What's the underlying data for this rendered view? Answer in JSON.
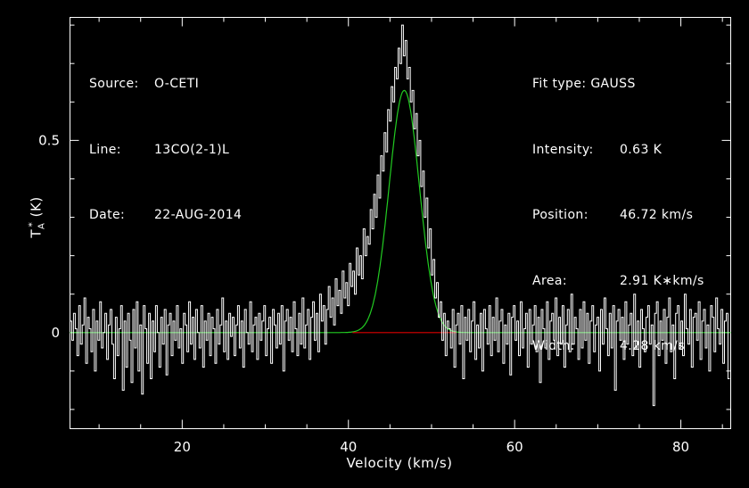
{
  "info_left": [
    {
      "key": "Source:",
      "value": "O-CETI"
    },
    {
      "key": "Line:",
      "value": "13CO(2-1)L"
    },
    {
      "key": "Date:",
      "value": "22-AUG-2014"
    }
  ],
  "info_right": [
    {
      "key": "Fit type: ",
      "value": "GAUSS"
    },
    {
      "key": "Intensity:",
      "value": "0.63 K"
    },
    {
      "key": "Position:",
      "value": "46.72 km/s"
    },
    {
      "key": "Area:",
      "value": "2.91 K∗km/s"
    },
    {
      "key": "Width:",
      "value": "4.28 km/s"
    }
  ],
  "colors": {
    "background": "#000000",
    "axes": "#ffffff",
    "spectrum": "#ffffff",
    "fit": "#22cc22",
    "baseline": "#dd0000"
  },
  "chart_data": {
    "type": "line",
    "xlabel": "Velocity (km/s)",
    "ylabel_main": "T",
    "ylabel_sub": "A",
    "ylabel_sup": "*",
    "ylabel_unit": "(K)",
    "xlim": [
      6.5,
      86
    ],
    "ylim": [
      -0.25,
      0.82
    ],
    "xticks": [
      20,
      40,
      60,
      80
    ],
    "yticks": [
      0,
      0.5
    ],
    "xtick_labels": [
      "20",
      "40",
      "60",
      "80"
    ],
    "ytick_labels": [
      "0",
      "0.5"
    ],
    "series": [
      {
        "kind": "histogram",
        "x_start": 6.5,
        "x_step": 0.21,
        "values": [
          0.03,
          -0.02,
          0.05,
          0.01,
          -0.06,
          0.07,
          -0.03,
          0.02,
          0.09,
          -0.08,
          0.04,
          0.01,
          -0.05,
          0.06,
          -0.1,
          0.03,
          -0.02,
          0.08,
          -0.04,
          0.0,
          0.05,
          -0.07,
          0.02,
          0.06,
          -0.03,
          -0.12,
          0.04,
          -0.06,
          0.01,
          0.07,
          -0.15,
          0.03,
          -0.09,
          0.05,
          -0.02,
          -0.13,
          0.06,
          -0.04,
          0.08,
          -0.1,
          0.02,
          -0.16,
          0.07,
          0.01,
          -0.08,
          0.05,
          -0.12,
          0.03,
          -0.05,
          0.07,
          0.0,
          -0.09,
          0.04,
          -0.03,
          0.06,
          -0.11,
          0.02,
          0.05,
          -0.06,
          0.03,
          -0.02,
          0.07,
          -0.04,
          0.01,
          -0.08,
          0.05,
          0.02,
          -0.05,
          0.08,
          -0.03,
          0.04,
          -0.07,
          0.06,
          0.0,
          -0.04,
          0.07,
          -0.09,
          0.03,
          -0.02,
          0.05,
          -0.06,
          0.04,
          0.01,
          -0.08,
          0.06,
          -0.03,
          0.02,
          0.09,
          -0.05,
          0.03,
          -0.07,
          0.05,
          -0.01,
          0.04,
          -0.06,
          0.02,
          0.07,
          -0.04,
          0.03,
          -0.09,
          0.06,
          0.0,
          -0.03,
          0.08,
          -0.05,
          0.02,
          0.04,
          -0.07,
          0.05,
          -0.02,
          0.03,
          0.07,
          -0.06,
          0.01,
          0.04,
          -0.08,
          0.06,
          0.02,
          -0.04,
          0.05,
          -0.03,
          0.07,
          -0.1,
          0.03,
          0.06,
          -0.02,
          0.04,
          -0.05,
          0.08,
          0.01,
          -0.06,
          0.05,
          -0.03,
          0.09,
          -0.04,
          0.02,
          0.06,
          -0.07,
          0.04,
          0.08,
          -0.02,
          0.05,
          -0.05,
          0.1,
          0.03,
          0.07,
          -0.03,
          0.06,
          0.12,
          0.04,
          0.09,
          0.02,
          0.14,
          0.07,
          0.11,
          0.05,
          0.16,
          0.09,
          0.13,
          0.07,
          0.18,
          0.12,
          0.16,
          0.1,
          0.22,
          0.15,
          0.2,
          0.14,
          0.27,
          0.2,
          0.25,
          0.23,
          0.32,
          0.27,
          0.36,
          0.3,
          0.41,
          0.35,
          0.46,
          0.42,
          0.52,
          0.47,
          0.58,
          0.55,
          0.64,
          0.6,
          0.69,
          0.66,
          0.74,
          0.7,
          0.8,
          0.72,
          0.76,
          0.66,
          0.69,
          0.6,
          0.63,
          0.53,
          0.57,
          0.46,
          0.5,
          0.38,
          0.42,
          0.3,
          0.35,
          0.22,
          0.27,
          0.15,
          0.19,
          0.09,
          0.13,
          0.04,
          0.08,
          -0.02,
          0.05,
          -0.06,
          0.03,
          0.01,
          -0.04,
          0.06,
          -0.09,
          0.02,
          0.05,
          -0.03,
          0.07,
          -0.12,
          0.04,
          -0.02,
          0.06,
          -0.05,
          0.03,
          0.08,
          -0.07,
          0.02,
          -0.04,
          0.05,
          -0.1,
          0.06,
          0.01,
          -0.03,
          0.07,
          -0.06,
          0.04,
          -0.02,
          0.09,
          -0.05,
          0.03,
          0.06,
          -0.08,
          0.02,
          -0.03,
          0.05,
          -0.11,
          0.04,
          0.07,
          -0.02,
          0.03,
          -0.06,
          0.08,
          -0.04,
          0.01,
          0.05,
          -0.09,
          0.06,
          -0.03,
          0.02,
          0.07,
          -0.05,
          0.04,
          -0.13,
          0.06,
          0.01,
          -0.04,
          0.08,
          -0.07,
          0.03,
          0.05,
          -0.02,
          0.09,
          -0.06,
          0.04,
          -0.03,
          0.07,
          -0.09,
          0.02,
          0.06,
          -0.05,
          0.1,
          -0.03,
          0.04,
          0.01,
          -0.07,
          0.06,
          -0.04,
          0.08,
          -0.02,
          0.05,
          -0.08,
          0.03,
          0.07,
          -0.05,
          0.02,
          0.04,
          -0.1,
          0.06,
          -0.03,
          0.09,
          0.01,
          -0.06,
          0.05,
          -0.04,
          0.07,
          -0.15,
          0.03,
          0.06,
          -0.02,
          0.04,
          -0.07,
          0.08,
          -0.03,
          0.02,
          0.05,
          -0.06,
          0.1,
          -0.04,
          0.03,
          -0.09,
          0.06,
          0.01,
          -0.05,
          0.04,
          0.07,
          -0.03,
          0.02,
          -0.19,
          0.05,
          0.08,
          -0.06,
          0.03,
          -0.02,
          0.06,
          -0.08,
          0.04,
          0.09,
          -0.05,
          0.02,
          -0.12,
          0.05,
          0.07,
          -0.04,
          0.03,
          -0.06,
          0.1,
          0.01,
          -0.03,
          0.06,
          -0.09,
          0.04,
          0.05,
          -0.02,
          0.08,
          -0.07,
          0.03,
          0.06,
          -0.04,
          0.02,
          -0.1,
          0.07,
          0.04,
          -0.05,
          0.09,
          0.01,
          -0.03,
          0.06,
          -0.08,
          0.03,
          0.05,
          -0.12
        ]
      },
      {
        "kind": "gaussian-fit",
        "amplitude": 0.63,
        "center": 46.72,
        "fwhm": 4.28,
        "x_min": 6.5,
        "x_max": 86,
        "fit_window": [
          40.5,
          53
        ]
      },
      {
        "kind": "baseline",
        "y": 0,
        "x_range": [
          40.5,
          53
        ]
      }
    ]
  }
}
